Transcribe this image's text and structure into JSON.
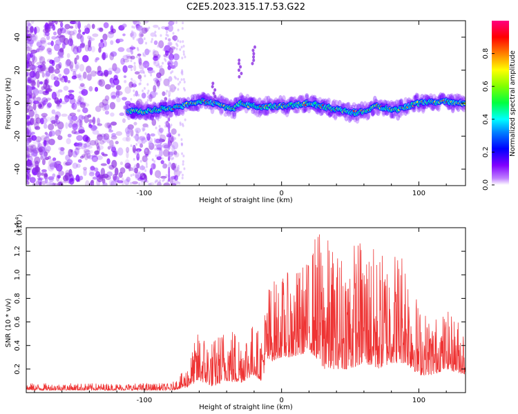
{
  "title": "C2E5.2023.315.17.53.G22",
  "chart_data": [
    {
      "type": "heatmap",
      "title": "C2E5.2023.315.17.53.G22",
      "xlabel": "Height of straight line (km)",
      "ylabel": "Frequency (Hz)",
      "xlim": [
        -186,
        134
      ],
      "ylim": [
        -50,
        50
      ],
      "x_ticks": [
        -100,
        0,
        100
      ],
      "y_ticks": [
        -40,
        -20,
        0,
        20,
        40
      ],
      "colorbar": {
        "label": "Normalized spectral amplitude",
        "range": [
          0,
          1
        ],
        "ticks": [
          0.0,
          0.2,
          0.4,
          0.6,
          0.8
        ],
        "colors": [
          "#ffffff",
          "#8000ff",
          "#0000ff",
          "#00c0ff",
          "#00ff80",
          "#80ff00",
          "#ffff00",
          "#ff8000",
          "#ff0000",
          "#ff0080"
        ]
      },
      "ridge": {
        "description_points_x": [
          -112,
          -100,
          -80,
          -60,
          -48,
          -35,
          -30,
          -20,
          0,
          20,
          40,
          55,
          70,
          85,
          100,
          120,
          134
        ],
        "description_points_y": [
          -5,
          -5,
          -3,
          1,
          0,
          -4,
          0,
          -2,
          -2,
          0,
          -4,
          -6,
          -2,
          -4,
          0,
          1,
          0
        ]
      }
    },
    {
      "type": "line",
      "xlabel": "Height of straight line (km)",
      "ylabel": "SNR (10 * v/v)",
      "yscale_label": "(x10",
      "yscale_exp": "4",
      "yscale_suffix": ")",
      "xlim": [
        -186,
        134
      ],
      "ylim": [
        0,
        1.4
      ],
      "x_ticks": [
        -100,
        0,
        100
      ],
      "y_ticks": [
        0.2,
        0.4,
        0.6,
        0.8,
        1.0,
        1.2,
        1.4
      ],
      "color": "#ee3333",
      "envelope_x": [
        -186,
        -80,
        -70,
        -60,
        -50,
        -40,
        -30,
        -20,
        -15,
        -10,
        0,
        10,
        20,
        25,
        30,
        40,
        50,
        60,
        70,
        80,
        90,
        100,
        110,
        120,
        134
      ],
      "envelope_max": [
        0.08,
        0.08,
        0.2,
        0.55,
        0.45,
        0.6,
        0.55,
        0.6,
        0.5,
        0.95,
        1.0,
        1.05,
        1.15,
        1.4,
        1.4,
        1.2,
        1.3,
        1.35,
        1.2,
        1.25,
        1.3,
        0.75,
        0.65,
        0.7,
        0.6
      ],
      "envelope_min": [
        0.02,
        0.02,
        0.04,
        0.1,
        0.05,
        0.1,
        0.08,
        0.15,
        0.1,
        0.25,
        0.3,
        0.3,
        0.35,
        0.3,
        0.2,
        0.2,
        0.2,
        0.25,
        0.2,
        0.25,
        0.25,
        0.15,
        0.15,
        0.2,
        0.15
      ]
    }
  ]
}
